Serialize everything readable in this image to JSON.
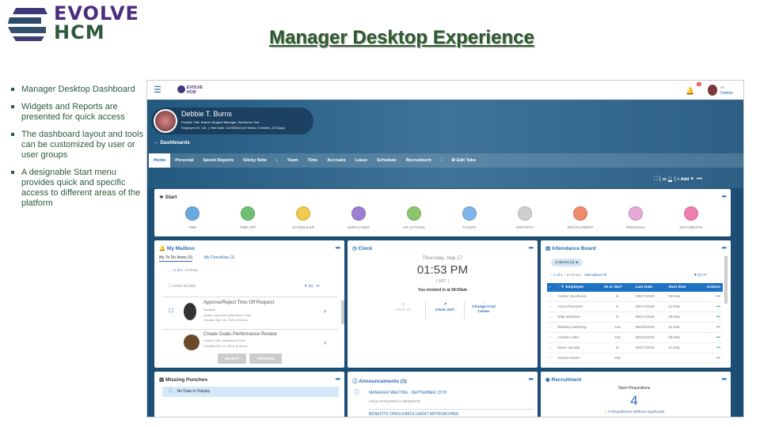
{
  "slide": {
    "logo_line1": "EVOLVE",
    "logo_line2": "HCM",
    "title": "Manager Desktop Experience",
    "bullets": [
      "Manager Desktop Dashboard",
      "Widgets and Reports are presented for quick access",
      "The dashboard layout and tools can be customized by user or user groups",
      "A designable Start menu provides quick and specific access to different areas of the platform"
    ]
  },
  "app": {
    "logo": "EVOLVE HCM",
    "notifications": "10",
    "user_greeting": "Hi!",
    "user_name": "Debbie",
    "profile": {
      "name": "Debbie T. Burns",
      "position": "Position Title: Branch Support Manager, Workforce One",
      "employee_id": "Employee ID: 115",
      "hire_date": "Hire Date: 11/25/2004 (15 Years, 9 Months, 23 Days)"
    },
    "back_label": "Dashboards",
    "tabs": [
      "Home",
      "Personal",
      "Saved Reports",
      "Sticky Note",
      "Team",
      "Time",
      "Accruals",
      "Leave",
      "Schedule",
      "Recruitment",
      "Edit Tabs"
    ],
    "add_label": "+ Add",
    "start": {
      "title": "Start",
      "items": [
        {
          "label": "TIME",
          "color": "#6aa9e0"
        },
        {
          "label": "TIME OFF",
          "color": "#6fbf73"
        },
        {
          "label": "SCHEDULER",
          "color": "#f2c94c"
        },
        {
          "label": "EMPLOYEES",
          "color": "#9b7fd0"
        },
        {
          "label": "HR ACTIONS",
          "color": "#8cc56b"
        },
        {
          "label": "TALENT",
          "color": "#7fb4e8"
        },
        {
          "label": "REPORTS",
          "color": "#cfcfcf"
        },
        {
          "label": "RECRUITMENT",
          "color": "#f08a6c"
        },
        {
          "label": "PERSONAL",
          "color": "#e6a9d8"
        },
        {
          "label": "DOCUMENTS",
          "color": "#ef7fb0"
        }
      ]
    },
    "mailbox": {
      "title": "My Mailbox",
      "tab1": "My To Do Items (5)",
      "tab2": "My Checklists (1)",
      "pager": "1 of 1",
      "rows": "5 Rows",
      "select_all": "Select all (0/0)",
      "filter": "(0)",
      "items": [
        {
          "title": "Approve/Reject Time Off Request",
          "sub1": "Vacation",
          "sub2": "Amber Jacobson (Workforce One)",
          "sub3": "Created Sep 16, 2020, 8:02 am"
        },
        {
          "title": "Create Goals Performance Review",
          "sub1": "Charlie Utter (Workforce One)",
          "sub2": "Created Feb 14, 2020, 8:48 am",
          "sub3": ""
        }
      ],
      "reject": "REJECT",
      "approve": "APPROVE"
    },
    "clock": {
      "title": "Clock",
      "date": "Thursday, Sep 17",
      "time": "01:53 PM",
      "tz": "[ MDT ]",
      "status": "You clocked in at 08:00am",
      "clock_in": "Clock IN",
      "clock_out": "Clock OUT",
      "change_cc": "Change Cost Center"
    },
    "attendance": {
      "title": "Attendance Board",
      "columns": "Columns (2)",
      "pager": "1 of 1",
      "rows": "13 Rows",
      "view": "Attendance",
      "filter": "(2)",
      "headers": [
        "Employee",
        "IN or OUT",
        "Last Date",
        "Start time",
        "Actions"
      ],
      "data": [
        [
          "Amber Jacobson",
          "In",
          "09/17/2020",
          "08:54a"
        ],
        [
          "Anna Plummer",
          "In",
          "09/17/2020",
          "11:00a"
        ],
        [
          "Billy Madison",
          "In",
          "09/17/2020",
          "09:00a"
        ],
        [
          "Brittany Northrop",
          "Out",
          "09/16/2020",
          "11:00a"
        ],
        [
          "Charlie Utter",
          "Out",
          "09/16/2020",
          "09:00a"
        ],
        [
          "Dane Jacoby",
          "In",
          "09/17/2020",
          "11:00a"
        ],
        [
          "David Glover",
          "Out",
          "",
          ""
        ]
      ]
    },
    "missing": {
      "title": "Missing Punches",
      "empty": "No Data to Display"
    },
    "announcements": {
      "title": "Announcements (3)",
      "items": [
        {
          "title": "MANAGER MEETING - SEPTEMBER 15TH",
          "sub": "Active 07/01/2020 to 06/05/2079"
        },
        {
          "title": "BENEFITS OPEN ENROLLMENT APPROACHING",
          "sub": ""
        }
      ]
    },
    "recruitment": {
      "title": "Recruitment",
      "label": "Open Requisitions",
      "count": "4",
      "warning": "0 Requisitions Without Applicants"
    }
  }
}
